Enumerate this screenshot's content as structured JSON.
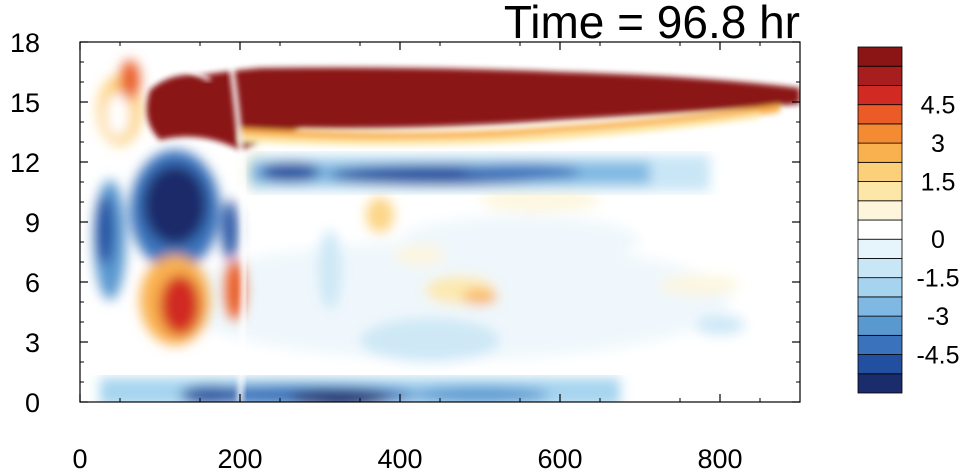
{
  "chart_data": {
    "type": "heatmap",
    "title": "Time = 96.8 hr",
    "xlabel": "",
    "ylabel": "",
    "xlim": [
      0,
      900
    ],
    "ylim": [
      0,
      18
    ],
    "x_ticks": [
      "0",
      "200",
      "400",
      "600",
      "800"
    ],
    "y_ticks": [
      "0",
      "3",
      "6",
      "9",
      "12",
      "15",
      "18"
    ],
    "grid": false,
    "colorbar": {
      "placement": "right",
      "levels": [
        -6,
        -5.25,
        -4.5,
        -3.75,
        -3,
        -2.25,
        -1.5,
        -0.75,
        -0.25,
        0.25,
        0.75,
        1.5,
        2.25,
        3,
        3.75,
        4.5,
        5.25,
        6
      ],
      "colors": [
        "#1a2c6b",
        "#234fa0",
        "#3a73bc",
        "#5a98d0",
        "#7fb8e2",
        "#a6d4ef",
        "#c9e6f6",
        "#e6f4fb",
        "#ffffff",
        "#fdf6dc",
        "#fde7a8",
        "#fcd07a",
        "#f9b14f",
        "#f48b33",
        "#ea5b25",
        "#d12a22",
        "#a81d1d",
        "#8b1414"
      ],
      "tick_labels": [
        "4.5",
        "3",
        "1.5",
        "0",
        "-1.5",
        "-3",
        "-4.5"
      ]
    },
    "features": [
      {
        "name": "upper positive band",
        "x_range": [
          100,
          900
        ],
        "y_range": [
          13.5,
          16.5
        ],
        "value": 6
      },
      {
        "name": "negative band under upper band",
        "x_range": [
          200,
          700
        ],
        "y_range": [
          10.5,
          12
        ],
        "value": -4
      },
      {
        "name": "early negative core",
        "x_range": [
          80,
          200
        ],
        "y_range": [
          7,
          11
        ],
        "value": -6
      },
      {
        "name": "early positive lobe",
        "x_range": [
          80,
          200
        ],
        "y_range": [
          3,
          7
        ],
        "value": 4
      },
      {
        "name": "near-surface negative layer",
        "x_range": [
          100,
          600
        ],
        "y_range": [
          0,
          1
        ],
        "value": -4
      }
    ]
  }
}
